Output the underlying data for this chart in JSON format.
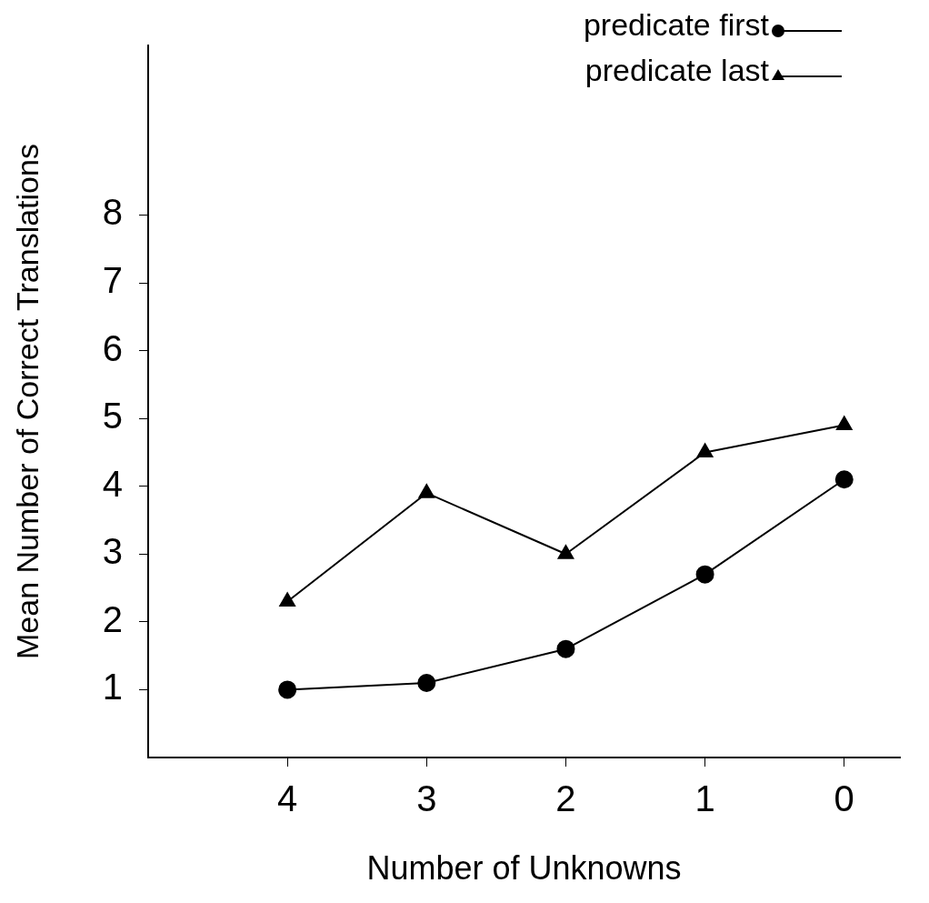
{
  "chart_data": {
    "type": "line",
    "xlabel": "Number of Unknowns",
    "ylabel": "Mean Number of Correct Translations",
    "x": [
      4,
      3,
      2,
      1,
      0
    ],
    "xlim": [
      5,
      -0.4
    ],
    "xticks": [
      4,
      3,
      2,
      1,
      0
    ],
    "ylim": [
      0,
      10.5
    ],
    "yticks": [
      1,
      2,
      3,
      4,
      5,
      6,
      7,
      8
    ],
    "grid": false,
    "legend": "top right",
    "series": [
      {
        "name": "predicate first",
        "color": "#000000",
        "marker": "circle",
        "values": [
          1.0,
          1.1,
          1.6,
          2.7,
          4.1
        ]
      },
      {
        "name": "predicate last",
        "color": "#000000",
        "marker": "triangle",
        "values": [
          2.3,
          3.9,
          3.0,
          4.5,
          4.9
        ]
      }
    ]
  }
}
